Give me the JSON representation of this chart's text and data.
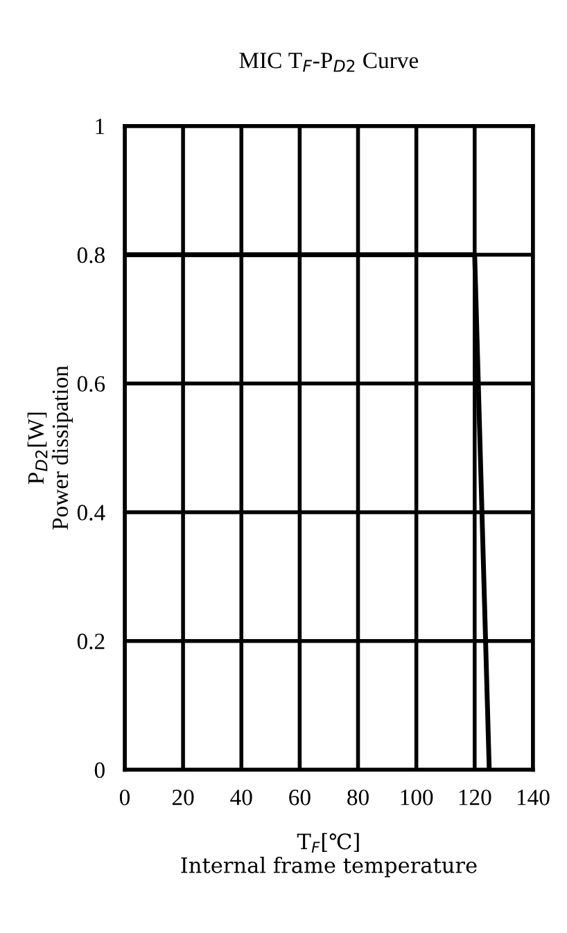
{
  "chart_data": {
    "type": "line",
    "title": "MIC T$_{F}$-P$_{D2}$ Curve",
    "xlabel": "T$_{F}$[℃]\nInternal frame temperature",
    "ylabel": "P$_{D2}$[W]\nPower dissipation",
    "x": [
      0,
      120,
      125
    ],
    "series": [
      {
        "color": "#000000",
        "values": [
          0.8,
          0.8,
          0
        ]
      }
    ],
    "xlim": [
      0,
      140
    ],
    "xticks": [
      0,
      20,
      40,
      60,
      80,
      100,
      120,
      140
    ],
    "ylim": [
      0,
      1
    ],
    "yticks": [
      0,
      0.2,
      0.4,
      0.6,
      0.8,
      1
    ],
    "grid": true,
    "marker": "none",
    "line_style": "solid"
  }
}
